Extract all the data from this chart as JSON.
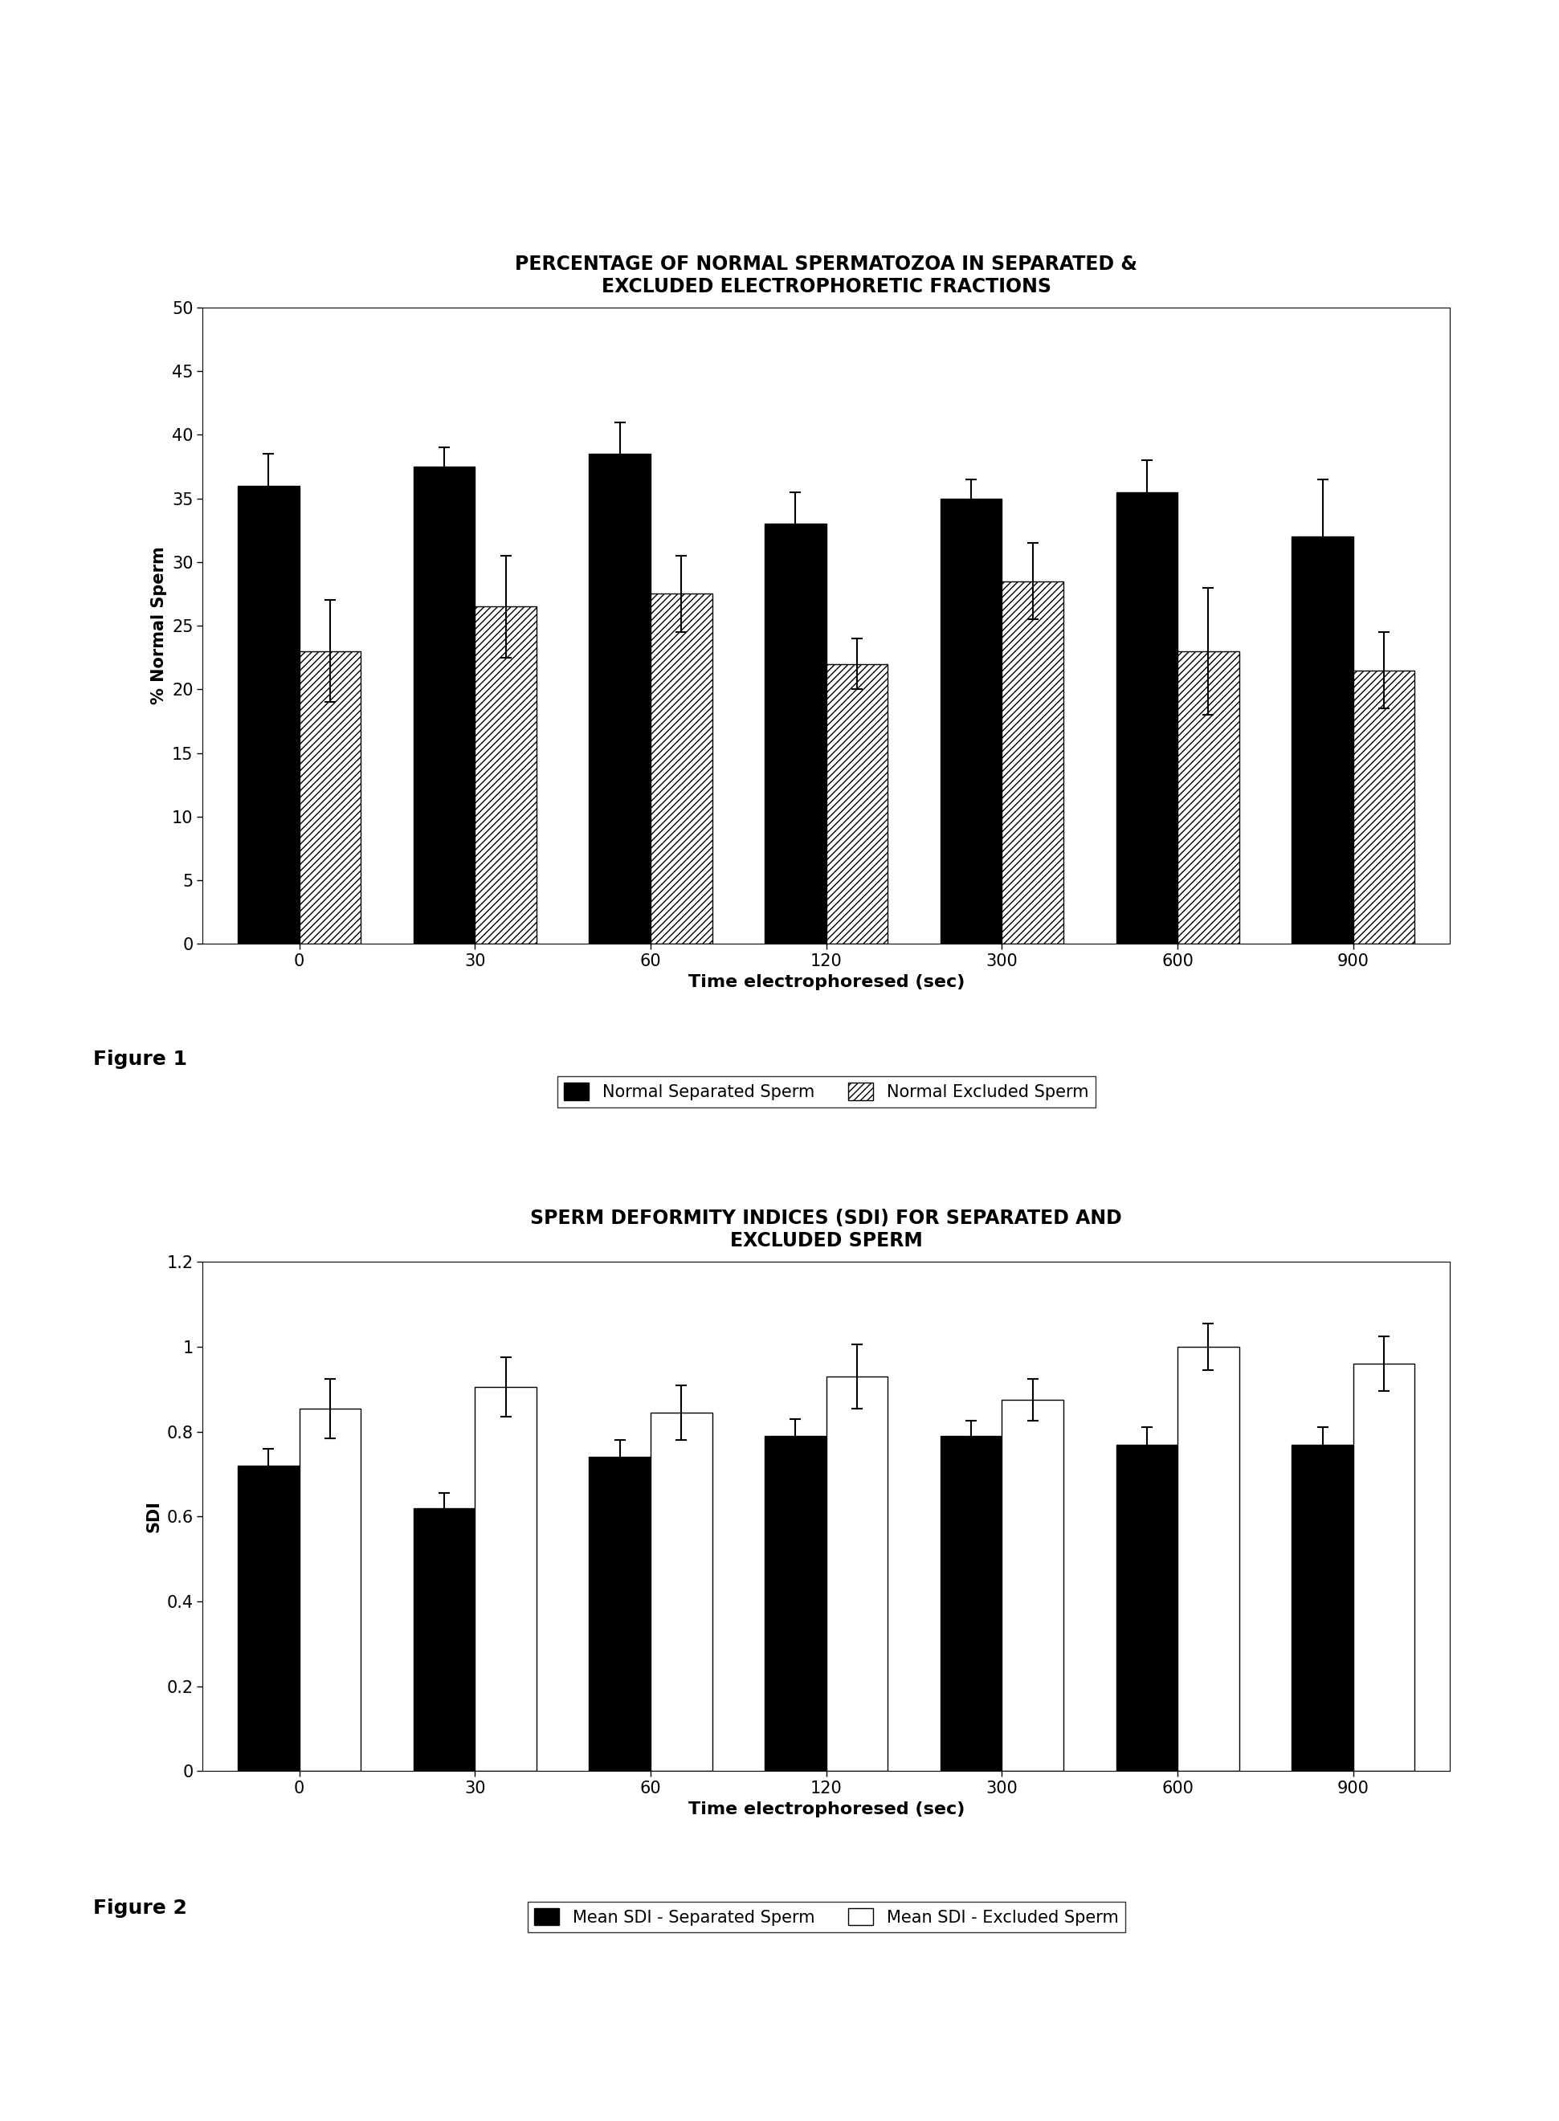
{
  "fig1": {
    "title": "PERCENTAGE OF NORMAL SPERMATOZOA IN SEPARATED &\nEXCLUDED ELECTROPHORETIC FRACTIONS",
    "xlabel": "Time electrophoresed (sec)",
    "ylabel": "% Normal Sperm",
    "ylim": [
      0,
      50
    ],
    "yticks": [
      0,
      5,
      10,
      15,
      20,
      25,
      30,
      35,
      40,
      45,
      50
    ],
    "categories": [
      0,
      30,
      60,
      120,
      300,
      600,
      900
    ],
    "separated_values": [
      36,
      37.5,
      38.5,
      33,
      35,
      35.5,
      32
    ],
    "excluded_values": [
      23,
      26.5,
      27.5,
      22,
      28.5,
      23,
      21.5
    ],
    "separated_errors": [
      2.5,
      1.5,
      2.5,
      2.5,
      1.5,
      2.5,
      4.5
    ],
    "excluded_errors": [
      4,
      4,
      3,
      2,
      3,
      5,
      3
    ],
    "legend1": "Normal Separated Sperm",
    "legend2": "Normal Excluded Sperm"
  },
  "fig2": {
    "title": "SPERM DEFORMITY INDICES (SDI) FOR SEPARATED AND\nEXCLUDED SPERM",
    "xlabel": "Time electrophoresed (sec)",
    "ylabel": "SDI",
    "ylim": [
      0,
      1.2
    ],
    "yticks": [
      0,
      0.2,
      0.4,
      0.6,
      0.8,
      1.0,
      1.2
    ],
    "ytick_labels": [
      "0",
      "0.2",
      "0.4",
      "0.6",
      "0.8",
      "1",
      "1.2"
    ],
    "categories": [
      0,
      30,
      60,
      120,
      300,
      600,
      900
    ],
    "separated_values": [
      0.72,
      0.62,
      0.74,
      0.79,
      0.79,
      0.77,
      0.77
    ],
    "excluded_values": [
      0.855,
      0.905,
      0.845,
      0.93,
      0.875,
      1.0,
      0.96
    ],
    "separated_errors": [
      0.04,
      0.035,
      0.04,
      0.04,
      0.035,
      0.04,
      0.04
    ],
    "excluded_errors": [
      0.07,
      0.07,
      0.065,
      0.075,
      0.05,
      0.055,
      0.065
    ],
    "legend1": "Mean SDI - Separated Sperm",
    "legend2": "Mean SDI - Excluded Sperm"
  },
  "background_color": "#ffffff",
  "bar_color_solid": "#000000",
  "bar_color_white": "#ffffff",
  "figure1_label": "Figure 1",
  "figure2_label": "Figure 2"
}
